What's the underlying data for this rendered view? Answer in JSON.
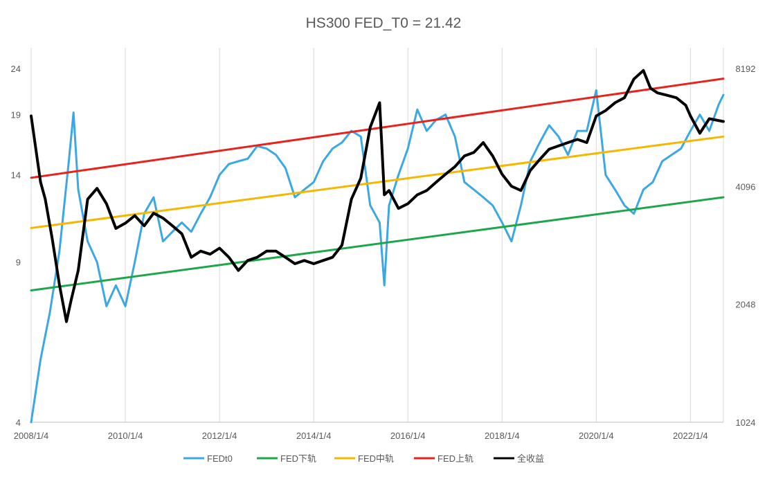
{
  "chart_data": {
    "type": "line",
    "title": "HS300 FED_T0 = 21.42",
    "x_axis": {
      "tick_labels": [
        "2008/1/4",
        "2010/1/4",
        "2012/1/4",
        "2014/1/4",
        "2016/1/4",
        "2018/1/4",
        "2020/1/4",
        "2022/1/4"
      ],
      "tick_values": [
        2008.0,
        2010.0,
        2012.0,
        2014.0,
        2016.0,
        2018.0,
        2020.0,
        2022.0
      ],
      "range": [
        2008.0,
        2022.7
      ]
    },
    "y_axis_left": {
      "scale": "log",
      "tick_labels": [
        "4",
        "9",
        "14",
        "19",
        "24"
      ],
      "tick_values": [
        4,
        9,
        14,
        19,
        24
      ],
      "range": [
        4,
        24
      ]
    },
    "y_axis_right": {
      "scale": "log2",
      "tick_labels": [
        "1024",
        "2048",
        "4096",
        "8192"
      ],
      "tick_values": [
        1024,
        2048,
        4096,
        8192
      ],
      "range": [
        1024,
        8192
      ]
    },
    "grid": "vertical",
    "legend_position": "bottom",
    "series": [
      {
        "name": "FEDt0",
        "color": "#3ba8e4",
        "axis": "left",
        "width": 3,
        "x": [
          2008.0,
          2008.2,
          2008.4,
          2008.6,
          2008.8,
          2008.9,
          2009.0,
          2009.2,
          2009.4,
          2009.6,
          2009.8,
          2010.0,
          2010.2,
          2010.4,
          2010.6,
          2010.8,
          2011.0,
          2011.2,
          2011.4,
          2011.6,
          2011.8,
          2012.0,
          2012.2,
          2012.4,
          2012.6,
          2012.8,
          2013.0,
          2013.2,
          2013.4,
          2013.6,
          2013.8,
          2014.0,
          2014.2,
          2014.4,
          2014.6,
          2014.8,
          2015.0,
          2015.2,
          2015.4,
          2015.5,
          2015.6,
          2015.8,
          2016.0,
          2016.2,
          2016.4,
          2016.6,
          2016.8,
          2017.0,
          2017.2,
          2017.4,
          2017.6,
          2017.8,
          2018.0,
          2018.2,
          2018.4,
          2018.6,
          2018.8,
          2019.0,
          2019.2,
          2019.4,
          2019.6,
          2019.8,
          2020.0,
          2020.2,
          2020.4,
          2020.6,
          2020.8,
          2021.0,
          2021.2,
          2021.4,
          2021.6,
          2021.8,
          2022.0,
          2022.2,
          2022.4,
          2022.6,
          2022.7
        ],
        "y": [
          4.0,
          5.5,
          7.0,
          9.5,
          15.0,
          19.2,
          13.0,
          10.0,
          9.0,
          7.2,
          8.0,
          7.2,
          9.0,
          11.5,
          12.5,
          10.0,
          10.5,
          11.0,
          10.5,
          11.5,
          12.5,
          14.0,
          14.8,
          15.0,
          15.2,
          16.2,
          16.0,
          15.5,
          14.5,
          12.5,
          13.0,
          13.5,
          15.0,
          16.0,
          16.5,
          17.5,
          17.0,
          12.0,
          11.0,
          8.0,
          12.0,
          14.0,
          16.0,
          19.5,
          17.5,
          18.5,
          19.0,
          17.0,
          13.5,
          13.0,
          12.5,
          12.0,
          11.0,
          10.0,
          12.0,
          15.0,
          16.5,
          18.0,
          17.0,
          15.5,
          17.5,
          17.5,
          21.5,
          14.0,
          13.0,
          12.0,
          11.5,
          13.0,
          13.5,
          15.0,
          15.5,
          16.0,
          17.5,
          19.0,
          17.5,
          20.0,
          21.0
        ]
      },
      {
        "name": "FED下轨",
        "color": "#1ea64a",
        "axis": "left",
        "width": 3,
        "x": [
          2008.0,
          2022.7
        ],
        "y": [
          7.8,
          12.5
        ]
      },
      {
        "name": "FED中轨",
        "color": "#f5b800",
        "axis": "left",
        "width": 3,
        "x": [
          2008.0,
          2022.7
        ],
        "y": [
          10.7,
          17.0
        ]
      },
      {
        "name": "FED上轨",
        "color": "#e8231e",
        "axis": "left",
        "width": 3,
        "x": [
          2008.0,
          2022.7
        ],
        "y": [
          13.8,
          22.8
        ]
      },
      {
        "name": "全收益",
        "color": "#000000",
        "axis": "right",
        "width": 4,
        "x": [
          2008.0,
          2008.1,
          2008.2,
          2008.3,
          2008.45,
          2008.6,
          2008.75,
          2008.85,
          2009.0,
          2009.2,
          2009.4,
          2009.6,
          2009.8,
          2010.0,
          2010.2,
          2010.4,
          2010.6,
          2010.8,
          2011.0,
          2011.2,
          2011.4,
          2011.6,
          2011.8,
          2012.0,
          2012.2,
          2012.4,
          2012.6,
          2012.8,
          2013.0,
          2013.2,
          2013.4,
          2013.6,
          2013.8,
          2014.0,
          2014.2,
          2014.4,
          2014.6,
          2014.8,
          2015.0,
          2015.2,
          2015.4,
          2015.5,
          2015.6,
          2015.8,
          2016.0,
          2016.2,
          2016.4,
          2016.6,
          2016.8,
          2017.0,
          2017.2,
          2017.4,
          2017.6,
          2017.8,
          2018.0,
          2018.2,
          2018.4,
          2018.6,
          2018.8,
          2019.0,
          2019.2,
          2019.4,
          2019.6,
          2019.8,
          2020.0,
          2020.2,
          2020.4,
          2020.6,
          2020.8,
          2021.0,
          2021.15,
          2021.3,
          2021.5,
          2021.7,
          2021.9,
          2022.0,
          2022.2,
          2022.4,
          2022.7
        ],
        "y": [
          6200,
          5100,
          4200,
          3800,
          3000,
          2300,
          1850,
          2100,
          2500,
          3800,
          4050,
          3700,
          3200,
          3300,
          3450,
          3250,
          3500,
          3400,
          3250,
          3100,
          2700,
          2800,
          2750,
          2850,
          2700,
          2500,
          2650,
          2700,
          2800,
          2800,
          2700,
          2600,
          2650,
          2600,
          2650,
          2700,
          2900,
          3800,
          4300,
          5800,
          6700,
          3900,
          4000,
          3600,
          3700,
          3900,
          4000,
          4200,
          4400,
          4600,
          4900,
          5000,
          5300,
          4900,
          4400,
          4100,
          4000,
          4500,
          4800,
          5100,
          5200,
          5300,
          5400,
          5300,
          6200,
          6400,
          6700,
          6900,
          7700,
          8100,
          7300,
          7100,
          7000,
          6900,
          6600,
          6200,
          5600,
          6100,
          6000
        ]
      }
    ]
  }
}
